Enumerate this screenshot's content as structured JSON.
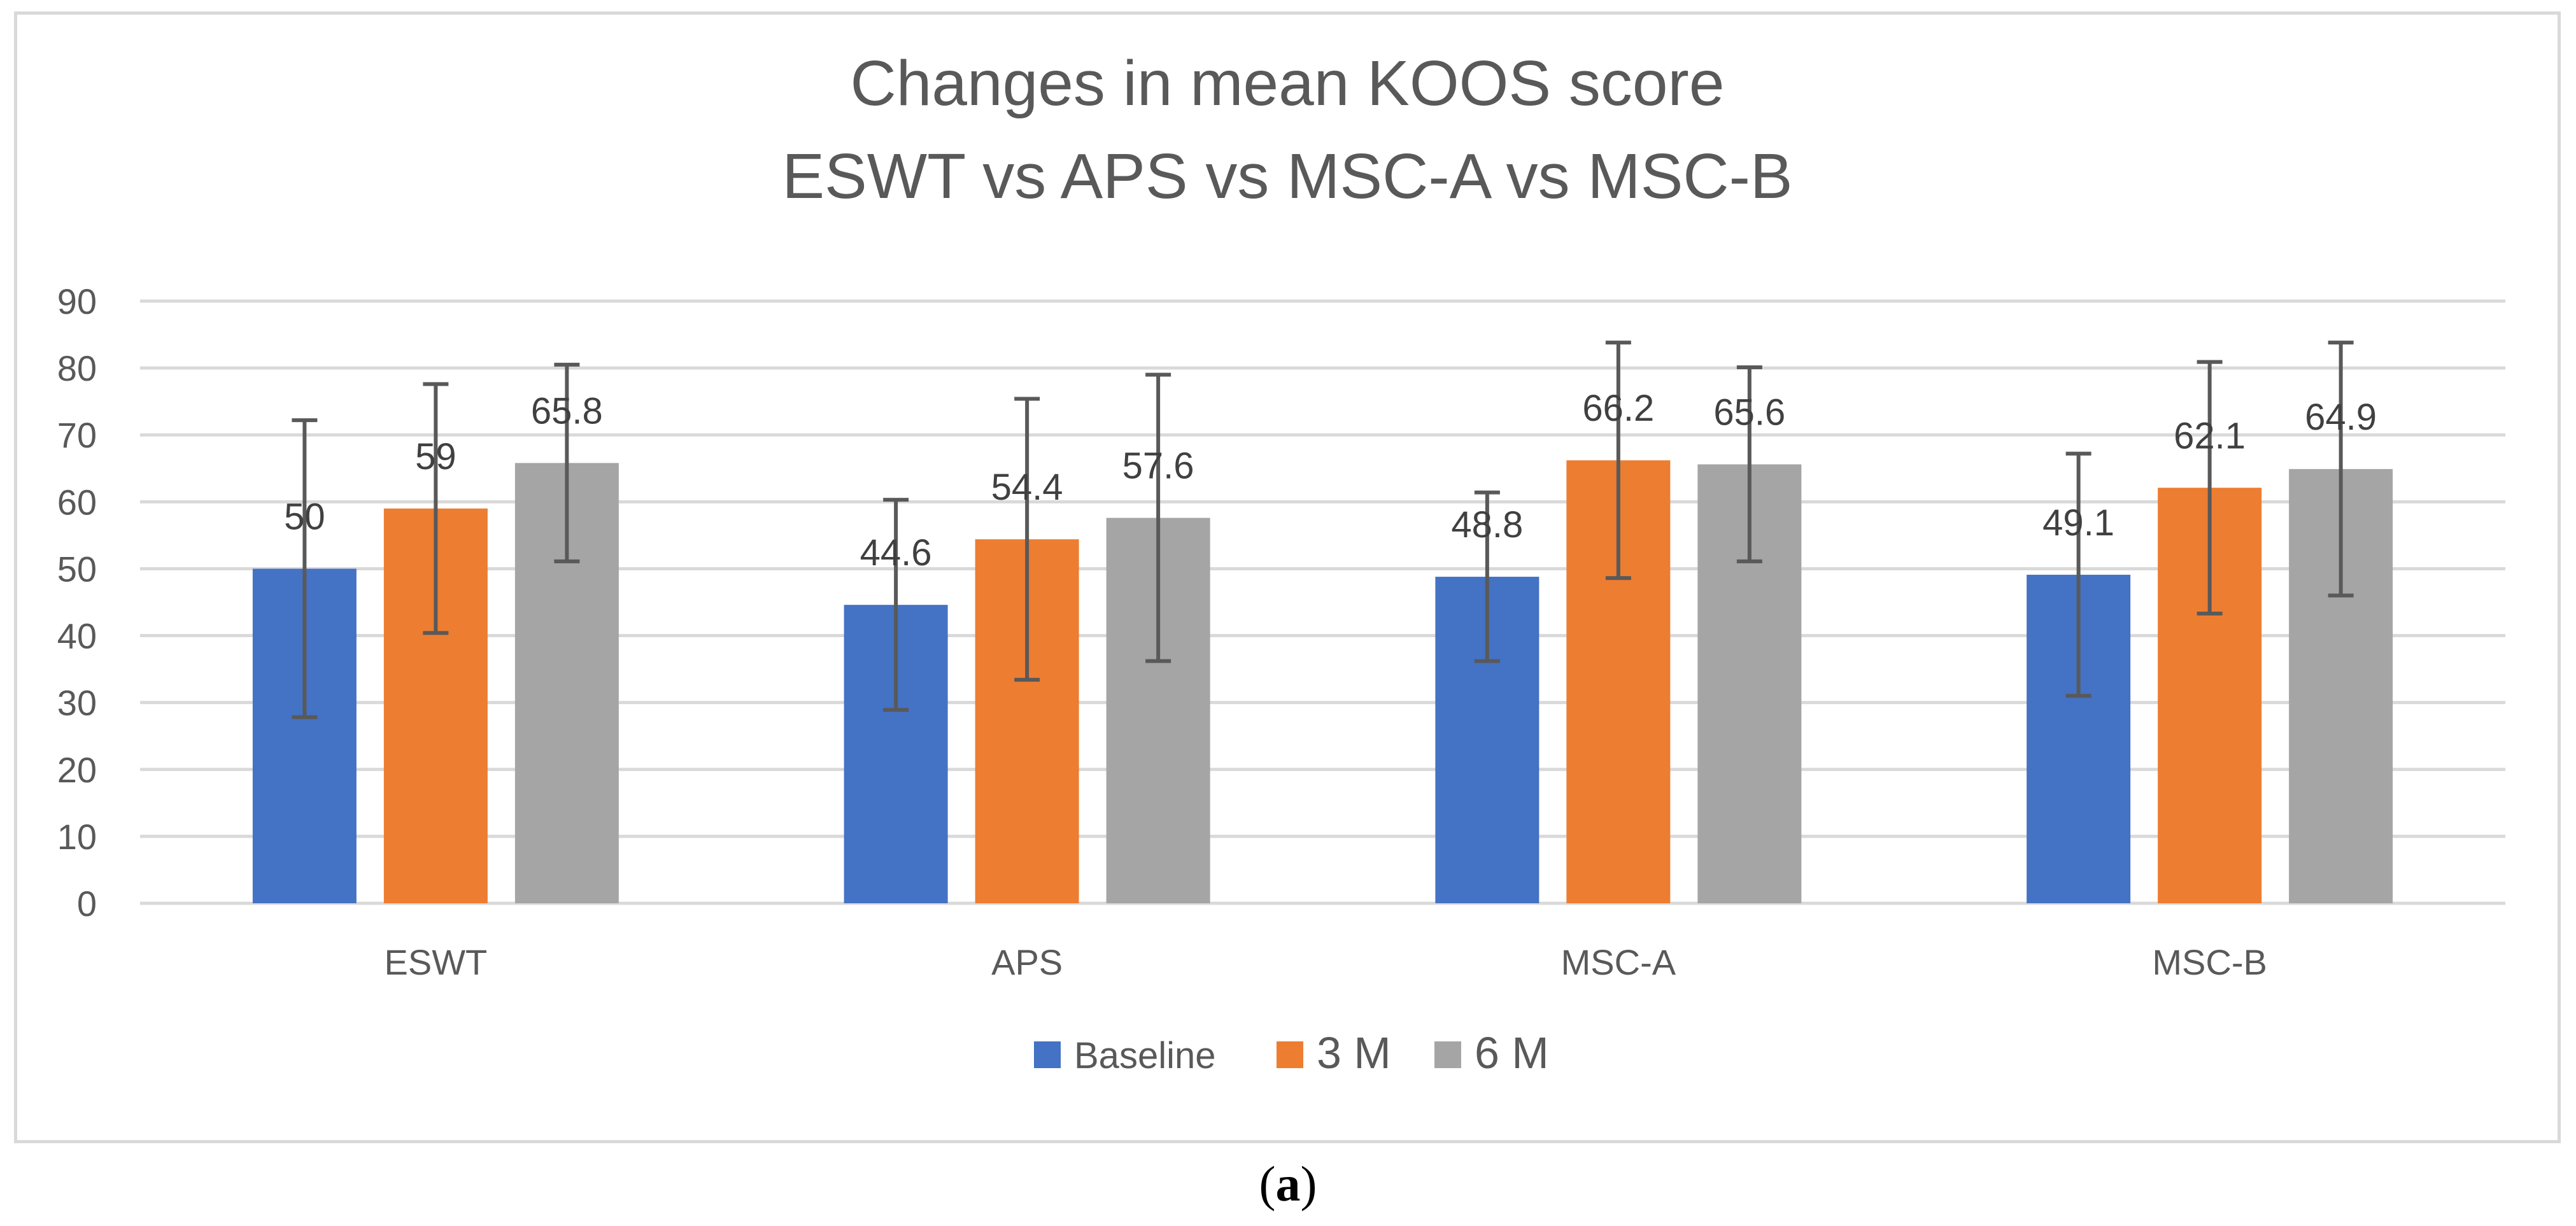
{
  "chart_data": {
    "type": "bar",
    "title_lines": [
      "Changes in mean KOOS score",
      "ESWT vs APS vs MSC-A vs MSC-B"
    ],
    "categories": [
      "ESWT",
      "APS",
      "MSC-A",
      "MSC-B"
    ],
    "series": [
      {
        "name": "Baseline",
        "color": "#4472c4",
        "values": [
          50,
          44.6,
          48.8,
          49.1
        ],
        "labels": [
          "50",
          "44.6",
          "48.8",
          "49.1"
        ],
        "err_low": [
          27.8,
          28.9,
          36.2,
          31.0
        ],
        "err_high": [
          72.2,
          60.3,
          61.4,
          67.2
        ]
      },
      {
        "name": "3 M",
        "color": "#ed7d31",
        "values": [
          59,
          54.4,
          66.2,
          62.1
        ],
        "labels": [
          "59",
          "54.4",
          "66.2",
          "62.1"
        ],
        "err_low": [
          40.4,
          33.4,
          48.6,
          43.3
        ],
        "err_high": [
          77.6,
          75.4,
          83.8,
          80.9
        ]
      },
      {
        "name": "6 M",
        "color": "#a5a5a5",
        "values": [
          65.8,
          57.6,
          65.6,
          64.9
        ],
        "labels": [
          "65.8",
          "57.6",
          "65.6",
          "64.9"
        ],
        "err_low": [
          51.1,
          36.2,
          51.1,
          46.0
        ],
        "err_high": [
          80.5,
          79.0,
          80.1,
          83.8
        ]
      }
    ],
    "ylim": [
      0,
      90
    ],
    "yticks": [
      0,
      10,
      20,
      30,
      40,
      50,
      60,
      70,
      80,
      90
    ],
    "legend_position": "bottom",
    "grid": true
  },
  "caption": {
    "open": "(",
    "letter": "a",
    "close": ")"
  }
}
